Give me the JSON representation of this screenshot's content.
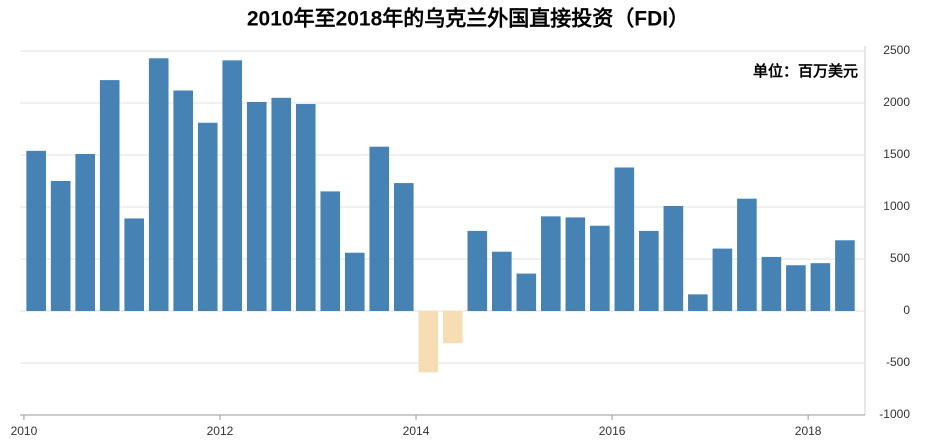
{
  "chart_data": {
    "type": "bar",
    "title": "2010年至2018年的乌克兰外国直接投资（FDI）",
    "annotation": "单位：百万美元",
    "x": [
      2010.125,
      2010.375,
      2010.625,
      2010.875,
      2011.125,
      2011.375,
      2011.625,
      2011.875,
      2012.125,
      2012.375,
      2012.625,
      2012.875,
      2013.125,
      2013.375,
      2013.625,
      2013.875,
      2014.125,
      2014.375,
      2014.625,
      2014.875,
      2015.125,
      2015.375,
      2015.625,
      2015.875,
      2016.125,
      2016.375,
      2016.625,
      2016.875,
      2017.125,
      2017.375,
      2017.625,
      2017.875,
      2018.125,
      2018.375
    ],
    "values": [
      1540,
      1250,
      1510,
      2220,
      890,
      2430,
      2120,
      1810,
      2410,
      2010,
      2050,
      1990,
      1150,
      560,
      1580,
      1230,
      -590,
      -310,
      770,
      570,
      360,
      910,
      900,
      820,
      1380,
      770,
      1010,
      160,
      600,
      1080,
      520,
      440,
      460,
      680
    ],
    "color": "#4682b4",
    "negative_color": "#f5deb3",
    "xlim": [
      2009.96,
      2018.58
    ],
    "xticks": [
      2010,
      2012,
      2014,
      2016,
      2018
    ],
    "ylim": [
      -1000,
      2500
    ],
    "yticks": [
      -1000,
      -500,
      0,
      500,
      1000,
      1500,
      2000,
      2500
    ],
    "grid": true
  }
}
